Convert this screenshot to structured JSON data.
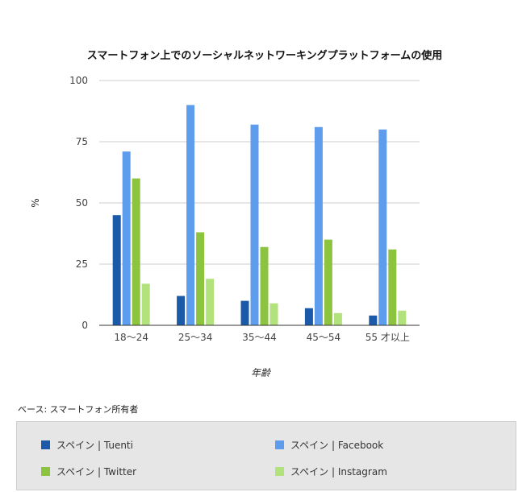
{
  "chart_data": {
    "type": "bar",
    "title": "スマートフォン上でのソーシャルネットワーキングプラットフォームの使用",
    "xlabel": "年齢",
    "ylabel": "%",
    "ylim": [
      0,
      100
    ],
    "yticks": [
      0,
      25,
      50,
      75,
      100
    ],
    "grid": true,
    "legend_position": "bottom",
    "categories": [
      "18〜24",
      "25〜34",
      "35〜44",
      "45〜54",
      "55 才以上"
    ],
    "series": [
      {
        "name": "スペイン | Tuenti",
        "color": "#1a5aa8",
        "values": [
          45,
          12,
          10,
          7,
          4
        ]
      },
      {
        "name": "スペイン | Facebook",
        "color": "#5e9ced",
        "values": [
          71,
          90,
          82,
          81,
          80
        ]
      },
      {
        "name": "スペイン | Twitter",
        "color": "#8cc43f",
        "values": [
          60,
          38,
          32,
          35,
          31
        ]
      },
      {
        "name": "スペイン | Instagram",
        "color": "#b2e27c",
        "values": [
          17,
          19,
          9,
          5,
          6
        ]
      }
    ]
  },
  "footnote": "ベース: スマートフォン所有者"
}
